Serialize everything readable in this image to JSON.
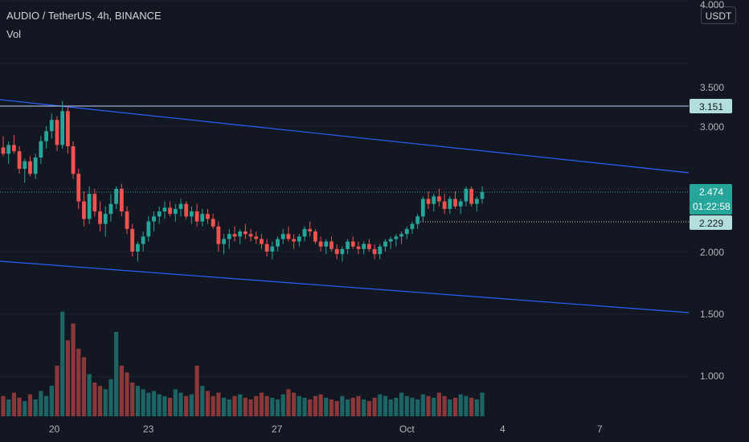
{
  "header": {
    "symbol": "AUDIO / TetherUS",
    "interval": "4h",
    "exchange": "BINANCE",
    "title_full": "AUDIO / TetherUS, 4h, BINANCE",
    "volume_indicator_label": "Vol"
  },
  "price_axis": {
    "currency": "USDT",
    "ticks": [
      "4.000",
      "3.500",
      "3.000",
      "2.000",
      "1.500",
      "1.000"
    ],
    "tick_values": [
      4.0,
      3.5,
      3.0,
      2.0,
      1.5,
      1.0
    ]
  },
  "time_axis": {
    "ticks": [
      "20",
      "23",
      "27",
      "Oct",
      "4",
      "7"
    ]
  },
  "badges": {
    "resistance": "3.151",
    "last_price": "2.474",
    "countdown": "01:22:58",
    "support": "2.229"
  },
  "colors": {
    "background": "#131722",
    "up": "#26a69a",
    "down": "#ef5350",
    "trendline": "#2962ff",
    "horizontal_line": "#c2d6ff"
  },
  "chart_data": {
    "type": "candlestick",
    "title": "AUDIO / TetherUS, 4h, BINANCE",
    "ylim": [
      0.7,
      4.05
    ],
    "price_levels": {
      "resistance": 3.151,
      "last": 2.474,
      "support": 2.229
    },
    "candles": [
      [
        2.83,
        2.92,
        2.76,
        2.78
      ],
      [
        2.78,
        2.88,
        2.7,
        2.85
      ],
      [
        2.85,
        2.93,
        2.78,
        2.8
      ],
      [
        2.8,
        2.84,
        2.62,
        2.66
      ],
      [
        2.66,
        2.74,
        2.55,
        2.72
      ],
      [
        2.72,
        2.76,
        2.6,
        2.62
      ],
      [
        2.62,
        2.78,
        2.58,
        2.75
      ],
      [
        2.75,
        2.92,
        2.7,
        2.88
      ],
      [
        2.88,
        3.0,
        2.82,
        2.96
      ],
      [
        2.96,
        3.1,
        2.9,
        3.05
      ],
      [
        3.05,
        3.08,
        2.8,
        2.85
      ],
      [
        2.85,
        3.2,
        2.82,
        3.12
      ],
      [
        3.12,
        3.16,
        2.78,
        2.84
      ],
      [
        2.84,
        2.88,
        2.58,
        2.62
      ],
      [
        2.62,
        2.66,
        2.34,
        2.4
      ],
      [
        2.4,
        2.48,
        2.2,
        2.26
      ],
      [
        2.26,
        2.52,
        2.22,
        2.46
      ],
      [
        2.46,
        2.5,
        2.28,
        2.32
      ],
      [
        2.32,
        2.4,
        2.16,
        2.22
      ],
      [
        2.22,
        2.36,
        2.12,
        2.3
      ],
      [
        2.3,
        2.46,
        2.24,
        2.38
      ],
      [
        2.38,
        2.52,
        2.34,
        2.5
      ],
      [
        2.5,
        2.54,
        2.28,
        2.32
      ],
      [
        2.32,
        2.36,
        2.14,
        2.18
      ],
      [
        2.18,
        2.22,
        1.96,
        2.0
      ],
      [
        2.0,
        2.08,
        1.92,
        2.06
      ],
      [
        2.06,
        2.16,
        2.0,
        2.12
      ],
      [
        2.12,
        2.28,
        2.08,
        2.24
      ],
      [
        2.24,
        2.32,
        2.16,
        2.28
      ],
      [
        2.28,
        2.36,
        2.22,
        2.32
      ],
      [
        2.32,
        2.4,
        2.26,
        2.35
      ],
      [
        2.35,
        2.4,
        2.28,
        2.3
      ],
      [
        2.3,
        2.38,
        2.24,
        2.34
      ],
      [
        2.34,
        2.42,
        2.28,
        2.38
      ],
      [
        2.38,
        2.4,
        2.26,
        2.28
      ],
      [
        2.28,
        2.36,
        2.22,
        2.32
      ],
      [
        2.32,
        2.38,
        2.2,
        2.24
      ],
      [
        2.24,
        2.34,
        2.2,
        2.3
      ],
      [
        2.3,
        2.34,
        2.22,
        2.26
      ],
      [
        2.26,
        2.3,
        2.18,
        2.2
      ],
      [
        2.2,
        2.24,
        2.0,
        2.06
      ],
      [
        2.06,
        2.14,
        1.98,
        2.1
      ],
      [
        2.1,
        2.18,
        2.02,
        2.14
      ],
      [
        2.14,
        2.2,
        2.08,
        2.12
      ],
      [
        2.12,
        2.18,
        2.06,
        2.16
      ],
      [
        2.16,
        2.22,
        2.1,
        2.14
      ],
      [
        2.14,
        2.18,
        2.08,
        2.12
      ],
      [
        2.12,
        2.16,
        2.06,
        2.1
      ],
      [
        2.1,
        2.14,
        2.02,
        2.06
      ],
      [
        2.06,
        2.1,
        1.96,
        2.0
      ],
      [
        2.0,
        2.08,
        1.94,
        2.04
      ],
      [
        2.04,
        2.12,
        2.0,
        2.1
      ],
      [
        2.1,
        2.18,
        2.06,
        2.14
      ],
      [
        2.14,
        2.2,
        2.08,
        2.1
      ],
      [
        2.1,
        2.14,
        2.02,
        2.08
      ],
      [
        2.08,
        2.14,
        2.04,
        2.12
      ],
      [
        2.12,
        2.2,
        2.08,
        2.18
      ],
      [
        2.18,
        2.24,
        2.12,
        2.16
      ],
      [
        2.16,
        2.18,
        2.06,
        2.08
      ],
      [
        2.08,
        2.12,
        2.0,
        2.04
      ],
      [
        2.04,
        2.1,
        1.98,
        2.08
      ],
      [
        2.08,
        2.12,
        2.0,
        2.02
      ],
      [
        2.02,
        2.06,
        1.94,
        1.98
      ],
      [
        1.98,
        2.04,
        1.92,
        2.02
      ],
      [
        2.02,
        2.1,
        1.98,
        2.08
      ],
      [
        2.08,
        2.12,
        2.02,
        2.04
      ],
      [
        2.04,
        2.08,
        1.98,
        2.02
      ],
      [
        2.02,
        2.08,
        1.98,
        2.06
      ],
      [
        2.06,
        2.1,
        2.0,
        2.02
      ],
      [
        2.02,
        2.06,
        1.94,
        1.98
      ],
      [
        1.98,
        2.06,
        1.94,
        2.04
      ],
      [
        2.04,
        2.1,
        2.0,
        2.08
      ],
      [
        2.08,
        2.12,
        2.02,
        2.1
      ],
      [
        2.1,
        2.14,
        2.04,
        2.12
      ],
      [
        2.12,
        2.16,
        2.06,
        2.14
      ],
      [
        2.14,
        2.2,
        2.1,
        2.18
      ],
      [
        2.18,
        2.24,
        2.14,
        2.22
      ],
      [
        2.22,
        2.3,
        2.18,
        2.28
      ],
      [
        2.28,
        2.44,
        2.24,
        2.42
      ],
      [
        2.42,
        2.48,
        2.34,
        2.38
      ],
      [
        2.38,
        2.46,
        2.32,
        2.44
      ],
      [
        2.44,
        2.5,
        2.36,
        2.4
      ],
      [
        2.4,
        2.46,
        2.3,
        2.34
      ],
      [
        2.34,
        2.44,
        2.3,
        2.42
      ],
      [
        2.42,
        2.48,
        2.34,
        2.36
      ],
      [
        2.36,
        2.42,
        2.3,
        2.4
      ],
      [
        2.4,
        2.52,
        2.36,
        2.5
      ],
      [
        2.5,
        2.52,
        2.36,
        2.38
      ],
      [
        2.38,
        2.44,
        2.32,
        2.42
      ],
      [
        2.42,
        2.52,
        2.38,
        2.474
      ]
    ],
    "volume": [
      0.12,
      0.1,
      0.14,
      0.11,
      0.09,
      0.13,
      0.1,
      0.15,
      0.12,
      0.18,
      0.3,
      0.62,
      0.45,
      0.55,
      0.4,
      0.35,
      0.25,
      0.2,
      0.18,
      0.16,
      0.22,
      0.5,
      0.3,
      0.26,
      0.2,
      0.18,
      0.16,
      0.14,
      0.15,
      0.13,
      0.12,
      0.11,
      0.16,
      0.14,
      0.12,
      0.13,
      0.3,
      0.18,
      0.15,
      0.12,
      0.14,
      0.11,
      0.1,
      0.12,
      0.13,
      0.11,
      0.1,
      0.12,
      0.14,
      0.12,
      0.11,
      0.1,
      0.13,
      0.16,
      0.14,
      0.12,
      0.11,
      0.1,
      0.12,
      0.13,
      0.11,
      0.1,
      0.09,
      0.12,
      0.1,
      0.11,
      0.12,
      0.1,
      0.09,
      0.11,
      0.13,
      0.12,
      0.1,
      0.11,
      0.14,
      0.12,
      0.11,
      0.1,
      0.13,
      0.12,
      0.11,
      0.14,
      0.12,
      0.1,
      0.11,
      0.13,
      0.12,
      0.11,
      0.1,
      0.14
    ]
  }
}
